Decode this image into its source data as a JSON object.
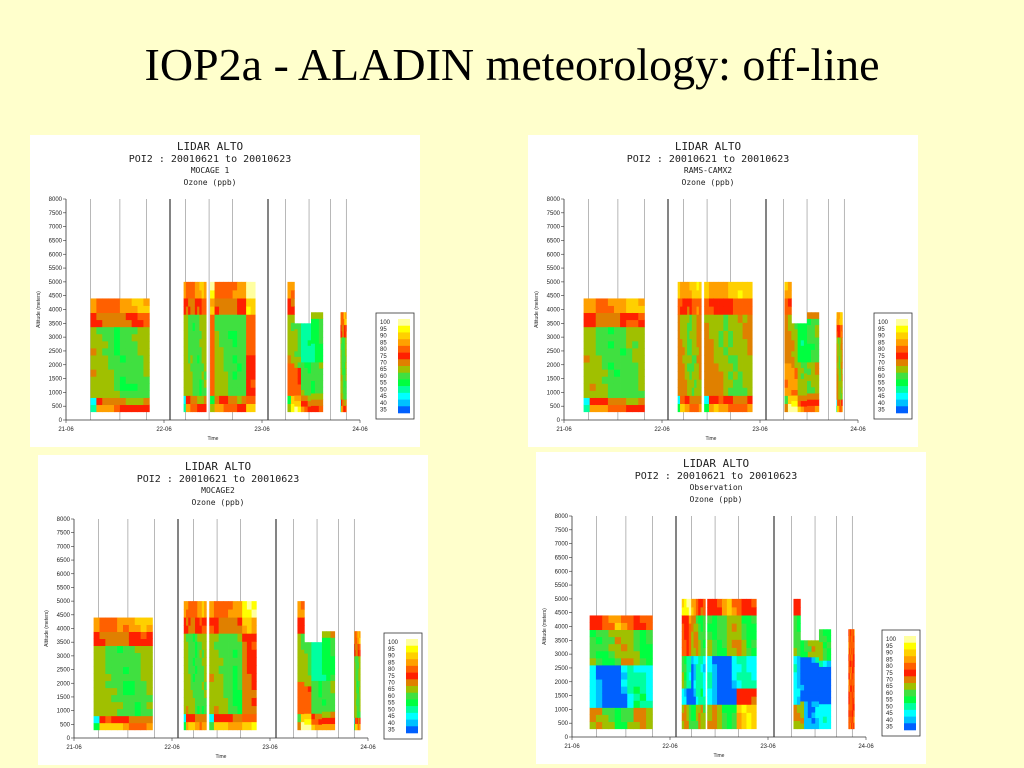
{
  "slide": {
    "title": "IOP2a - ALADIN meteorology: off-line"
  },
  "legend_levels": [
    "100",
    "95",
    "90",
    "85",
    "80",
    "75",
    "70",
    "65",
    "60",
    "55",
    "50",
    "45",
    "40",
    "35"
  ],
  "legend_colors": [
    "#ffffa0",
    "#ffff00",
    "#ffd000",
    "#ffa000",
    "#ff6000",
    "#ff2000",
    "#e08000",
    "#a0c000",
    "#40e040",
    "#00ff40",
    "#00ffa0",
    "#00ffff",
    "#00c0ff",
    "#0060ff"
  ],
  "chart_data": [
    {
      "type": "heatmap",
      "title": "LIDAR  ALTO",
      "subtitle": "POI2 : 20010621 to 20010623",
      "model": "MOCAGE 1",
      "variable": "Ozone (ppb)",
      "xlabel": "Time",
      "ylabel": "Altitude (meters)",
      "ylim": [
        0,
        8000
      ],
      "yticks": [
        "8000",
        "7500",
        "7000",
        "6500",
        "6000",
        "5500",
        "5000",
        "4500",
        "4000",
        "3500",
        "3000",
        "2500",
        "2000",
        "1500",
        "1000",
        "500",
        "0"
      ],
      "xticks": [
        "21-06",
        "22-06",
        "23-06",
        "24-06"
      ],
      "blocks": [
        {
          "x0": 0.25,
          "x1": 0.85,
          "top": 4400,
          "pattern": "mocage1-a"
        },
        {
          "x0": 1.2,
          "x1": 1.43,
          "top": 5000,
          "pattern": "mocage1-b"
        },
        {
          "x0": 1.47,
          "x1": 1.93,
          "top": 5000,
          "pattern": "mocage1-c"
        },
        {
          "x0": 2.26,
          "x1": 2.62,
          "top": 5000,
          "step": [
            [
              2.26,
              2.33,
              5000
            ],
            [
              2.33,
              2.5,
              3500
            ],
            [
              2.5,
              2.62,
              3900
            ]
          ],
          "pattern": "mocage1-d"
        },
        {
          "x0": 2.8,
          "x1": 2.86,
          "top": 3900,
          "pattern": "mocage1-e"
        }
      ]
    },
    {
      "type": "heatmap",
      "title": "LIDAR  ALTO",
      "subtitle": "POI2 : 20010621 to 20010623",
      "model": "RAMS-CAMX2",
      "variable": "Ozone (ppb)",
      "xlabel": "Time",
      "ylabel": "Altitude (meters)",
      "ylim": [
        0,
        8000
      ],
      "yticks": [
        "8000",
        "7500",
        "7000",
        "6500",
        "6000",
        "5500",
        "5000",
        "4500",
        "4000",
        "3500",
        "3000",
        "2500",
        "2000",
        "1500",
        "1000",
        "500",
        "0"
      ],
      "xticks": [
        "21-06",
        "22-06",
        "23-06",
        "24-06"
      ],
      "blocks": [
        {
          "x0": 0.2,
          "x1": 0.82,
          "top": 4400,
          "pattern": "rams-a"
        },
        {
          "x0": 1.16,
          "x1": 1.4,
          "top": 5000,
          "pattern": "rams-b"
        },
        {
          "x0": 1.43,
          "x1": 1.92,
          "top": 5000,
          "pattern": "rams-c"
        },
        {
          "x0": 2.25,
          "x1": 2.6,
          "top": 5000,
          "step": [
            [
              2.25,
              2.32,
              5000
            ],
            [
              2.32,
              2.48,
              3500
            ],
            [
              2.48,
              2.6,
              3900
            ]
          ],
          "pattern": "rams-d"
        },
        {
          "x0": 2.78,
          "x1": 2.84,
          "top": 3900,
          "pattern": "rams-e"
        }
      ]
    },
    {
      "type": "heatmap",
      "title": "LIDAR  ALTO",
      "subtitle": "POI2 : 20010621 to 20010623",
      "model": "MOCAGE2",
      "variable": "Ozone (ppb)",
      "xlabel": "Time",
      "ylabel": "Altitude (meters)",
      "ylim": [
        0,
        8000
      ],
      "yticks": [
        "8000",
        "7500",
        "7000",
        "6500",
        "6000",
        "5500",
        "5000",
        "4500",
        "4000",
        "3500",
        "3000",
        "2500",
        "2000",
        "1500",
        "1000",
        "500",
        "0"
      ],
      "xticks": [
        "21-06",
        "22-06",
        "23-06",
        "24-06"
      ],
      "blocks": [
        {
          "x0": 0.2,
          "x1": 0.8,
          "top": 4400,
          "pattern": "mocage2-a"
        },
        {
          "x0": 1.12,
          "x1": 1.35,
          "top": 5000,
          "pattern": "mocage2-b"
        },
        {
          "x0": 1.38,
          "x1": 1.86,
          "top": 5000,
          "pattern": "mocage2-c"
        },
        {
          "x0": 2.28,
          "x1": 2.66,
          "top": 5000,
          "step": [
            [
              2.28,
              2.35,
              5000
            ],
            [
              2.35,
              2.53,
              3500
            ],
            [
              2.53,
              2.66,
              3900
            ]
          ],
          "pattern": "mocage2-d"
        },
        {
          "x0": 2.86,
          "x1": 2.92,
          "top": 3900,
          "pattern": "mocage2-e"
        }
      ]
    },
    {
      "type": "heatmap",
      "title": "LIDAR  ALTO",
      "subtitle": "POI2 : 20010621 to 20010623",
      "model": "Observation",
      "variable": "Ozone (ppb)",
      "xlabel": "Time",
      "ylabel": "Altitude (meters)",
      "ylim": [
        0,
        8000
      ],
      "yticks": [
        "8000",
        "7500",
        "7000",
        "6500",
        "6000",
        "5500",
        "5000",
        "4500",
        "4000",
        "3500",
        "3000",
        "2500",
        "2000",
        "1500",
        "1000",
        "500",
        "0"
      ],
      "xticks": [
        "21-06",
        "22-06",
        "23-06",
        "24-06"
      ],
      "blocks": [
        {
          "x0": 0.18,
          "x1": 0.82,
          "top": 4400,
          "pattern": "obs-a"
        },
        {
          "x0": 1.12,
          "x1": 1.36,
          "top": 5000,
          "pattern": "obs-b"
        },
        {
          "x0": 1.38,
          "x1": 1.88,
          "top": 5000,
          "pattern": "obs-c"
        },
        {
          "x0": 2.26,
          "x1": 2.64,
          "top": 5000,
          "step": [
            [
              2.26,
              2.33,
              5000
            ],
            [
              2.33,
              2.52,
              3500
            ],
            [
              2.52,
              2.64,
              3900
            ]
          ],
          "pattern": "obs-d"
        },
        {
          "x0": 2.82,
          "x1": 2.88,
          "top": 3900,
          "pattern": "obs-e"
        }
      ]
    }
  ]
}
